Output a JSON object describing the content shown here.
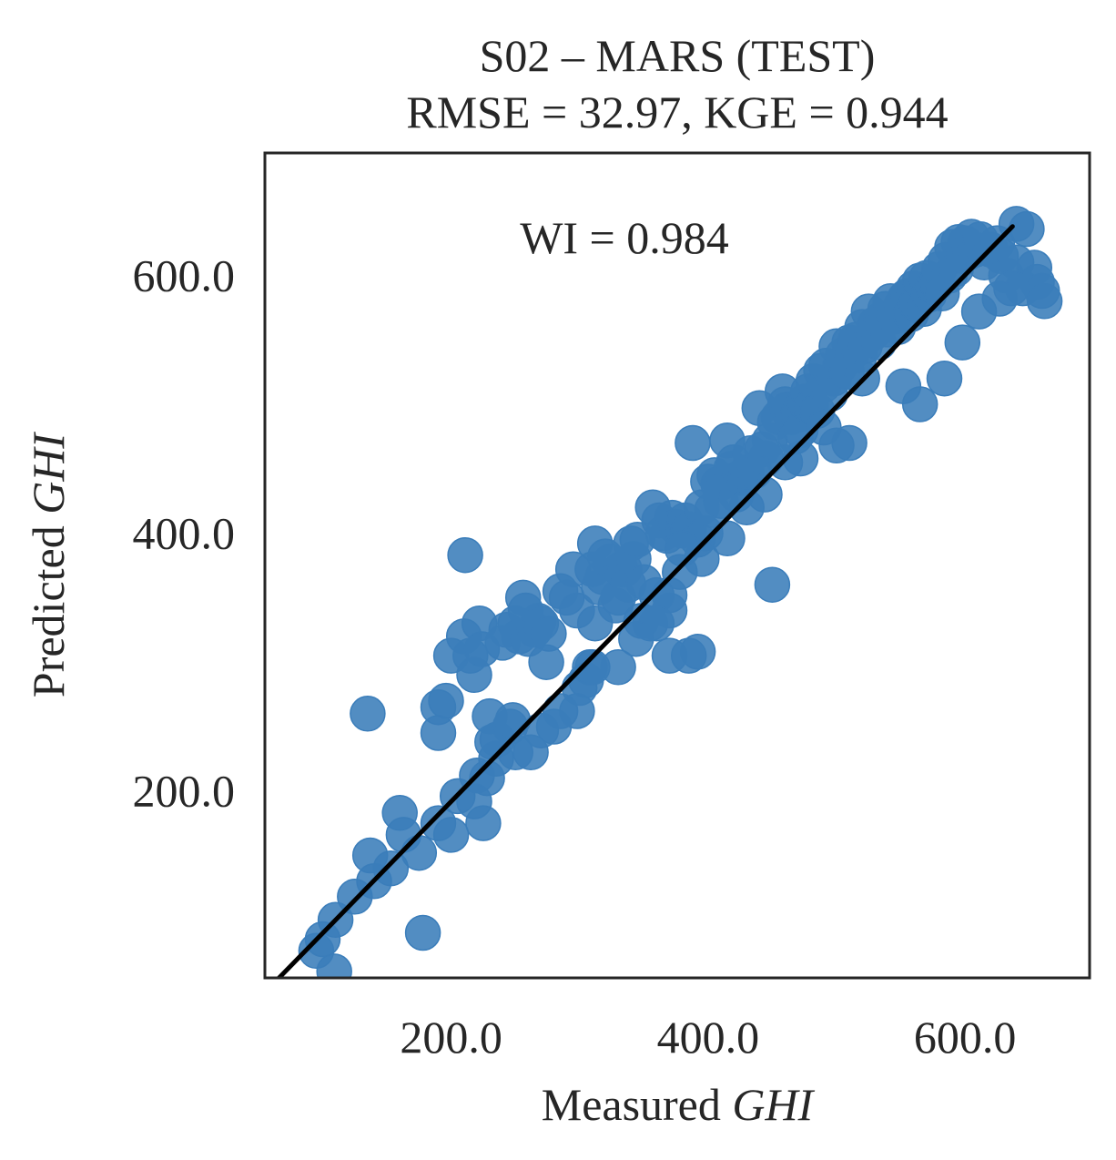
{
  "chart_data": {
    "type": "scatter",
    "title_line1": "S02 – MARS (TEST)",
    "title_line2": "RMSE = 32.97, KGE = 0.944",
    "xlabel_prefix": "Measured ",
    "xlabel_var": "GHI",
    "ylabel_prefix": "Predicted ",
    "ylabel_var": "GHI",
    "annotation": "WI = 0.984",
    "xlim": [
      55,
      697
    ],
    "ylim": [
      55,
      695
    ],
    "xticks": [
      200,
      400,
      600
    ],
    "yticks": [
      200,
      400,
      600
    ],
    "xtick_labels": [
      "200.0",
      "400.0",
      "600.0"
    ],
    "ytick_labels": [
      "200.0",
      "400.0",
      "600.0"
    ],
    "fit_line": {
      "x": [
        66,
        637
      ],
      "y": [
        55,
        638
      ]
    },
    "grid": false,
    "colors": {
      "points": "#3a7dba",
      "line": "#000000",
      "frame": "#262626"
    },
    "points": [
      [
        95,
        76
      ],
      [
        109,
        60
      ],
      [
        135,
        260
      ],
      [
        137,
        150
      ],
      [
        160,
        183
      ],
      [
        163,
        166
      ],
      [
        178,
        90
      ],
      [
        190,
        245
      ],
      [
        190,
        265
      ],
      [
        196,
        270
      ],
      [
        200,
        305
      ],
      [
        210,
        320
      ],
      [
        211,
        383
      ],
      [
        215,
        305
      ],
      [
        218,
        290
      ],
      [
        222,
        330
      ],
      [
        224,
        310
      ],
      [
        225,
        175
      ],
      [
        228,
        210
      ],
      [
        230,
        258
      ],
      [
        232,
        238
      ],
      [
        236,
        240
      ],
      [
        240,
        315
      ],
      [
        243,
        325
      ],
      [
        246,
        250
      ],
      [
        248,
        255
      ],
      [
        250,
        330
      ],
      [
        253,
        320
      ],
      [
        256,
        350
      ],
      [
        258,
        340
      ],
      [
        260,
        318
      ],
      [
        262,
        230
      ],
      [
        265,
        325
      ],
      [
        268,
        332
      ],
      [
        270,
        330
      ],
      [
        274,
        300
      ],
      [
        276,
        322
      ],
      [
        280,
        250
      ],
      [
        285,
        355
      ],
      [
        290,
        350
      ],
      [
        295,
        372
      ],
      [
        298,
        340
      ],
      [
        300,
        280
      ],
      [
        305,
        286
      ],
      [
        308,
        296
      ],
      [
        310,
        372
      ],
      [
        312,
        392
      ],
      [
        315,
        358
      ],
      [
        318,
        366
      ],
      [
        320,
        382
      ],
      [
        324,
        378
      ],
      [
        328,
        344
      ],
      [
        330,
        350
      ],
      [
        332,
        372
      ],
      [
        335,
        372
      ],
      [
        338,
        360
      ],
      [
        340,
        392
      ],
      [
        342,
        380
      ],
      [
        345,
        395
      ],
      [
        348,
        332
      ],
      [
        350,
        362
      ],
      [
        355,
        330
      ],
      [
        357,
        420
      ],
      [
        360,
        352
      ],
      [
        362,
        410
      ],
      [
        365,
        400
      ],
      [
        368,
        398
      ],
      [
        370,
        340
      ],
      [
        372,
        412
      ],
      [
        375,
        405
      ],
      [
        378,
        370
      ],
      [
        380,
        402
      ],
      [
        382,
        410
      ],
      [
        385,
        403
      ],
      [
        388,
        470
      ],
      [
        392,
        395
      ],
      [
        395,
        420
      ],
      [
        398,
        400
      ],
      [
        400,
        440
      ],
      [
        403,
        418
      ],
      [
        405,
        445
      ],
      [
        408,
        438
      ],
      [
        410,
        425
      ],
      [
        412,
        440
      ],
      [
        415,
        472
      ],
      [
        418,
        450
      ],
      [
        420,
        455
      ],
      [
        422,
        430
      ],
      [
        425,
        443
      ],
      [
        428,
        443
      ],
      [
        430,
        447
      ],
      [
        433,
        462
      ],
      [
        436,
        448
      ],
      [
        440,
        497
      ],
      [
        442,
        465
      ],
      [
        445,
        458
      ],
      [
        448,
        472
      ],
      [
        450,
        360
      ],
      [
        452,
        486
      ],
      [
        455,
        490
      ],
      [
        458,
        510
      ],
      [
        460,
        500
      ],
      [
        462,
        496
      ],
      [
        465,
        490
      ],
      [
        468,
        475
      ],
      [
        470,
        492
      ],
      [
        472,
        480
      ],
      [
        475,
        502
      ],
      [
        478,
        510
      ],
      [
        480,
        498
      ],
      [
        482,
        518
      ],
      [
        485,
        495
      ],
      [
        488,
        526
      ],
      [
        490,
        515
      ],
      [
        492,
        530
      ],
      [
        495,
        508
      ],
      [
        498,
        520
      ],
      [
        500,
        545
      ],
      [
        503,
        530
      ],
      [
        505,
        538
      ],
      [
        508,
        525
      ],
      [
        510,
        548
      ],
      [
        512,
        540
      ],
      [
        515,
        550
      ],
      [
        518,
        538
      ],
      [
        520,
        560
      ],
      [
        522,
        545
      ],
      [
        525,
        572
      ],
      [
        528,
        555
      ],
      [
        530,
        562
      ],
      [
        533,
        548
      ],
      [
        535,
        566
      ],
      [
        538,
        574
      ],
      [
        540,
        558
      ],
      [
        542,
        580
      ],
      [
        545,
        568
      ],
      [
        548,
        560
      ],
      [
        550,
        576
      ],
      [
        553,
        582
      ],
      [
        555,
        584
      ],
      [
        558,
        570
      ],
      [
        560,
        590
      ],
      [
        562,
        578
      ],
      [
        565,
        596
      ],
      [
        568,
        574
      ],
      [
        570,
        598
      ],
      [
        572,
        585
      ],
      [
        575,
        592
      ],
      [
        578,
        594
      ],
      [
        580,
        605
      ],
      [
        582,
        586
      ],
      [
        585,
        612
      ],
      [
        588,
        600
      ],
      [
        590,
        622
      ],
      [
        593,
        605
      ],
      [
        595,
        626
      ],
      [
        598,
        615
      ],
      [
        600,
        625
      ],
      [
        603,
        618
      ],
      [
        605,
        630
      ],
      [
        608,
        620
      ],
      [
        612,
        628
      ],
      [
        615,
        610
      ],
      [
        620,
        620
      ],
      [
        625,
        625
      ],
      [
        628,
        615
      ],
      [
        632,
        600
      ],
      [
        640,
        610
      ],
      [
        645,
        590
      ],
      [
        640,
        640
      ],
      [
        648,
        636
      ],
      [
        654,
        606
      ],
      [
        656,
        595
      ],
      [
        660,
        588
      ],
      [
        662,
        580
      ],
      [
        636,
        590
      ],
      [
        627,
        582
      ],
      [
        611,
        572
      ],
      [
        598,
        548
      ],
      [
        584,
        520
      ],
      [
        565,
        500
      ],
      [
        552,
        514
      ],
      [
        520,
        520
      ],
      [
        510,
        470
      ],
      [
        500,
        468
      ],
      [
        490,
        482
      ],
      [
        472,
        458
      ],
      [
        460,
        455
      ],
      [
        444,
        430
      ],
      [
        430,
        420
      ],
      [
        415,
        396
      ],
      [
        395,
        380
      ],
      [
        380,
        388
      ],
      [
        370,
        352
      ],
      [
        360,
        330
      ],
      [
        344,
        318
      ],
      [
        330,
        296
      ],
      [
        310,
        296
      ],
      [
        298,
        262
      ],
      [
        285,
        262
      ],
      [
        270,
        247
      ],
      [
        250,
        230
      ],
      [
        235,
        225
      ],
      [
        220,
        212
      ],
      [
        205,
        196
      ],
      [
        190,
        175
      ],
      [
        175,
        152
      ],
      [
        153,
        140
      ],
      [
        140,
        130
      ],
      [
        125,
        118
      ],
      [
        110,
        100
      ],
      [
        100,
        85
      ],
      [
        385,
        305
      ],
      [
        392,
        308
      ],
      [
        370,
        305
      ],
      [
        312,
        330
      ],
      [
        200,
        166
      ],
      [
        218,
        192
      ]
    ]
  }
}
